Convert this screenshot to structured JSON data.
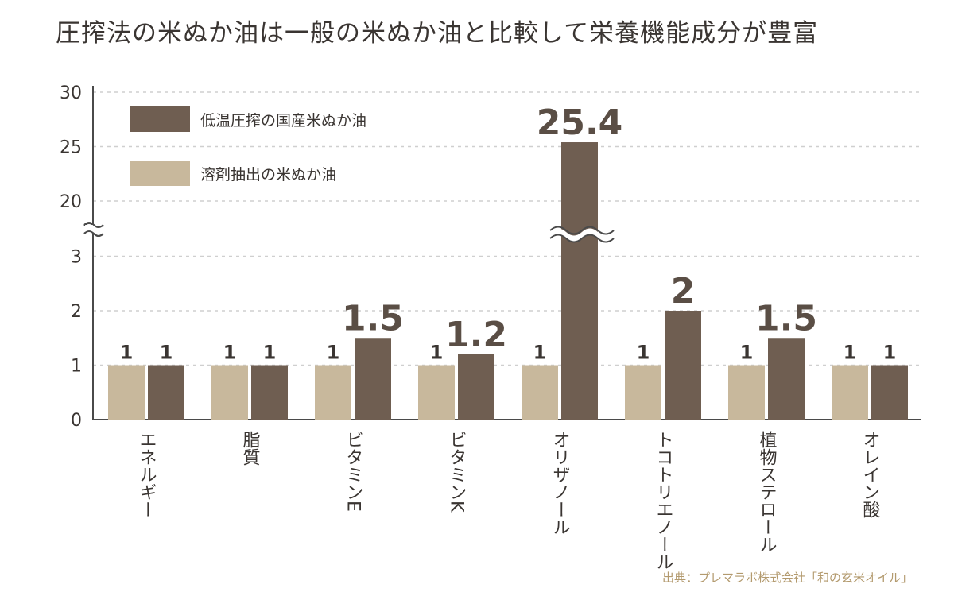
{
  "chart_data": {
    "type": "bar",
    "title": "圧搾法の米ぬか油は一般の米ぬか油と比較して栄養機能成分が豊富",
    "source": "出典：プレマラボ株式会社「和の玄米オイル」",
    "categories": [
      "エネルギー",
      "脂質",
      "ビタミンE",
      "ビタミンK",
      "オリザノール",
      "トコトリエノール",
      "植物ステロール",
      "オレイン酸"
    ],
    "series": [
      {
        "name": "溶剤抽出の米ぬか油",
        "color": "#c8b89c",
        "values": [
          1,
          1,
          1,
          1,
          1,
          1,
          1,
          1
        ]
      },
      {
        "name": "低温圧搾の国産米ぬか油",
        "color": "#6f5e51",
        "values": [
          1,
          1,
          1.5,
          1.2,
          25.4,
          2,
          1.5,
          1
        ]
      }
    ],
    "data_labels": {
      "solvent": [
        "1",
        "1",
        "1",
        "1",
        "1",
        "1",
        "1",
        "1"
      ],
      "pressed": [
        "1",
        "1",
        "1.5",
        "1.2",
        "25.4",
        "2",
        "1.5",
        "1"
      ]
    },
    "yticks": [
      "0",
      "1",
      "2",
      "3",
      "20",
      "25",
      "30"
    ],
    "axis_break": "between 3 and 20",
    "ylim": [
      0,
      30
    ],
    "grid": true,
    "legend": "top-left"
  }
}
